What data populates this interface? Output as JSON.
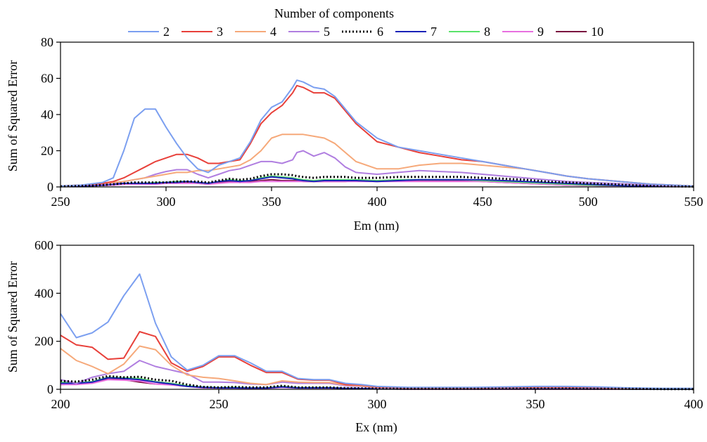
{
  "legend": {
    "title": "Number of components",
    "placement": "top-center",
    "entries": [
      {
        "label": "2",
        "color": "#7b9ff0",
        "dash": "solid"
      },
      {
        "label": "3",
        "color": "#e8403a",
        "dash": "solid"
      },
      {
        "label": "4",
        "color": "#f6a97a",
        "dash": "solid"
      },
      {
        "label": "5",
        "color": "#b07ee0",
        "dash": "solid"
      },
      {
        "label": "6",
        "color": "#000000",
        "dash": "dotted"
      },
      {
        "label": "7",
        "color": "#1a22b8",
        "dash": "solid"
      },
      {
        "label": "8",
        "color": "#59e36a",
        "dash": "solid"
      },
      {
        "label": "9",
        "color": "#e86fe0",
        "dash": "solid"
      },
      {
        "label": "10",
        "color": "#7a1240",
        "dash": "solid"
      }
    ]
  },
  "chart_data": [
    {
      "type": "line",
      "xlabel": "Em (nm)",
      "ylabel": "Sum of Squared Error",
      "xlim": [
        250,
        550
      ],
      "ylim": [
        0,
        80
      ],
      "xticks": [
        250,
        300,
        350,
        400,
        450,
        500,
        550
      ],
      "yticks": [
        0,
        20,
        40,
        60,
        80
      ],
      "grid": false,
      "x": [
        250,
        260,
        270,
        275,
        280,
        285,
        290,
        295,
        300,
        305,
        310,
        315,
        320,
        325,
        330,
        335,
        340,
        345,
        350,
        355,
        360,
        362,
        365,
        370,
        375,
        380,
        385,
        390,
        400,
        410,
        420,
        430,
        440,
        450,
        460,
        470,
        480,
        490,
        500,
        510,
        520,
        530,
        540,
        550
      ],
      "series": [
        {
          "name": "2",
          "values": [
            0.5,
            1,
            2.5,
            5,
            20,
            38,
            43,
            43,
            33,
            24,
            16,
            10,
            8,
            12,
            14,
            16,
            25,
            37,
            44,
            47,
            55,
            59,
            58,
            55,
            54,
            50,
            43,
            36,
            27,
            22,
            20,
            18,
            16,
            14,
            12,
            10,
            8,
            6,
            4.5,
            3.5,
            2.5,
            1.5,
            1,
            0.5
          ]
        },
        {
          "name": "3",
          "values": [
            0.5,
            1,
            2,
            3,
            5,
            8,
            11,
            14,
            16,
            18,
            18,
            16,
            13,
            13,
            14,
            15,
            24,
            35,
            41,
            45,
            52,
            56,
            55,
            52,
            52,
            49,
            42,
            35,
            25,
            22,
            19,
            17,
            15,
            14,
            12,
            10,
            8,
            6,
            4.5,
            3.5,
            2.5,
            1.5,
            1,
            0.5
          ]
        },
        {
          "name": "4",
          "values": [
            0.5,
            1,
            2,
            2.5,
            3,
            4,
            5,
            6,
            7,
            8,
            8,
            9,
            9,
            10,
            11,
            12,
            15,
            20,
            27,
            29,
            29,
            29,
            29,
            28,
            27,
            24,
            19,
            14,
            10,
            10,
            12,
            13,
            13,
            12,
            11,
            10,
            8,
            6,
            4.5,
            3.5,
            2.5,
            1.5,
            1,
            0.5
          ]
        },
        {
          "name": "5",
          "values": [
            0.5,
            1,
            1.5,
            2,
            3,
            4,
            5,
            7,
            8.5,
            9.5,
            9.5,
            7,
            5,
            7,
            9,
            10,
            12,
            14,
            14,
            13,
            15,
            19,
            20,
            17,
            19,
            16,
            11,
            8,
            7,
            8,
            9,
            8.5,
            8,
            7,
            6,
            5,
            4,
            3,
            2.5,
            2,
            1.5,
            1,
            0.5,
            0.3
          ]
        },
        {
          "name": "6",
          "values": [
            0.3,
            0.5,
            1,
            1.5,
            2,
            2.5,
            2.5,
            2.5,
            2.5,
            3,
            3,
            3,
            2.5,
            3.5,
            4.5,
            4,
            4.5,
            6,
            7,
            7,
            6.5,
            6,
            5.5,
            5,
            5.5,
            5.5,
            5.5,
            5,
            5,
            5.5,
            5.5,
            5.5,
            5.5,
            5,
            4.5,
            4,
            3,
            2.5,
            2,
            1.5,
            1,
            0.5,
            0.3,
            0.2
          ]
        },
        {
          "name": "7",
          "values": [
            0.3,
            0.5,
            1,
            1.5,
            2,
            2,
            2,
            2,
            2.5,
            2.5,
            3,
            2.5,
            2,
            3,
            3.5,
            3,
            3.5,
            4.5,
            5.5,
            5,
            4.5,
            4,
            3.5,
            3,
            3.5,
            3.5,
            3.5,
            3.5,
            3,
            3.5,
            4,
            4,
            4,
            4,
            3.5,
            3,
            2.5,
            2,
            1.5,
            1,
            0.5,
            0.4,
            0.3,
            0.2
          ]
        },
        {
          "name": "8",
          "values": [
            0.3,
            0.5,
            1,
            1.5,
            2,
            2,
            2,
            2.5,
            2.5,
            3,
            3,
            2.5,
            2,
            3,
            4,
            3.5,
            3.5,
            5,
            6,
            5.5,
            5,
            4.5,
            4,
            3.5,
            4,
            4,
            4,
            4,
            3.5,
            4,
            4,
            4,
            4,
            3.5,
            3,
            2.5,
            2,
            1.5,
            1,
            0.8,
            0.5,
            0.4,
            0.3,
            0.2
          ]
        },
        {
          "name": "9",
          "values": [
            0.3,
            0.5,
            0.8,
            1,
            1.5,
            1.5,
            1.5,
            1.5,
            2,
            2,
            2,
            2,
            1.5,
            2,
            2.5,
            2.5,
            2.5,
            3,
            3,
            3,
            3,
            3,
            3,
            3,
            3,
            3,
            3,
            3,
            3,
            3,
            3,
            3,
            3,
            3,
            2.5,
            2,
            1.5,
            1,
            0.8,
            0.6,
            0.5,
            0.4,
            0.3,
            0.2
          ]
        },
        {
          "name": "10",
          "values": [
            0.3,
            0.5,
            0.8,
            1,
            1.5,
            2,
            2,
            2,
            2.5,
            2.5,
            2.5,
            2,
            1.5,
            2.5,
            3,
            2.5,
            3,
            3.5,
            4,
            3.5,
            3.5,
            3.5,
            3,
            3,
            3,
            3,
            3,
            3.5,
            3,
            3.5,
            3.5,
            3.5,
            3.5,
            3,
            2.5,
            2,
            1.5,
            1,
            0.8,
            0.6,
            0.5,
            0.4,
            0.3,
            0.2
          ]
        }
      ]
    },
    {
      "type": "line",
      "xlabel": "Ex (nm)",
      "ylabel": "Sum of Squared Error",
      "xlim": [
        200,
        400
      ],
      "ylim": [
        0,
        600
      ],
      "xticks": [
        200,
        250,
        300,
        350,
        400
      ],
      "yticks": [
        0,
        200,
        400,
        600
      ],
      "grid": false,
      "x": [
        200,
        205,
        210,
        215,
        220,
        225,
        230,
        235,
        240,
        245,
        250,
        255,
        260,
        265,
        270,
        275,
        280,
        285,
        290,
        295,
        300,
        310,
        320,
        330,
        340,
        350,
        360,
        370,
        380,
        390,
        400
      ],
      "series": [
        {
          "name": "2",
          "values": [
            315,
            215,
            235,
            280,
            390,
            480,
            275,
            135,
            80,
            100,
            140,
            140,
            110,
            75,
            75,
            45,
            40,
            40,
            25,
            20,
            12,
            8,
            8,
            8,
            10,
            12,
            12,
            10,
            6,
            4,
            4
          ]
        },
        {
          "name": "3",
          "values": [
            225,
            185,
            175,
            125,
            130,
            240,
            220,
            110,
            75,
            95,
            135,
            135,
            100,
            70,
            70,
            42,
            38,
            38,
            20,
            18,
            10,
            7,
            7,
            7,
            8,
            10,
            10,
            8,
            5,
            3,
            3
          ]
        },
        {
          "name": "4",
          "values": [
            170,
            120,
            95,
            65,
            105,
            180,
            165,
            100,
            60,
            50,
            45,
            35,
            25,
            20,
            35,
            30,
            28,
            28,
            18,
            14,
            8,
            6,
            6,
            6,
            7,
            8,
            8,
            7,
            4,
            3,
            3
          ]
        },
        {
          "name": "5",
          "values": [
            40,
            25,
            50,
            65,
            75,
            120,
            95,
            80,
            65,
            30,
            30,
            28,
            22,
            20,
            30,
            25,
            25,
            25,
            15,
            12,
            6,
            5,
            5,
            5,
            6,
            7,
            7,
            6,
            3,
            2,
            2
          ]
        },
        {
          "name": "6",
          "values": [
            35,
            32,
            40,
            55,
            50,
            52,
            40,
            35,
            20,
            10,
            8,
            10,
            8,
            8,
            15,
            8,
            8,
            8,
            5,
            4,
            3,
            2,
            2,
            2,
            3,
            3,
            3,
            2,
            2,
            1,
            1
          ]
        },
        {
          "name": "7",
          "values": [
            25,
            25,
            30,
            48,
            45,
            40,
            30,
            22,
            12,
            8,
            6,
            6,
            5,
            5,
            10,
            6,
            6,
            6,
            4,
            3,
            2,
            2,
            2,
            2,
            2,
            2,
            2,
            2,
            1,
            1,
            1
          ]
        },
        {
          "name": "8",
          "values": [
            30,
            28,
            32,
            50,
            48,
            45,
            32,
            25,
            15,
            9,
            7,
            8,
            6,
            6,
            12,
            7,
            7,
            7,
            4,
            3,
            2,
            2,
            2,
            2,
            2,
            2,
            2,
            2,
            1,
            1,
            1
          ]
        },
        {
          "name": "9",
          "values": [
            20,
            20,
            25,
            40,
            38,
            35,
            22,
            18,
            12,
            6,
            5,
            5,
            4,
            4,
            8,
            5,
            5,
            5,
            3,
            2,
            2,
            1,
            1,
            1,
            1,
            1,
            1,
            1,
            1,
            1,
            1
          ]
        },
        {
          "name": "10",
          "values": [
            20,
            22,
            28,
            42,
            40,
            30,
            22,
            20,
            15,
            8,
            6,
            6,
            5,
            5,
            10,
            6,
            6,
            6,
            4,
            3,
            2,
            1,
            1,
            1,
            1,
            1,
            1,
            1,
            1,
            1,
            1
          ]
        }
      ]
    }
  ]
}
